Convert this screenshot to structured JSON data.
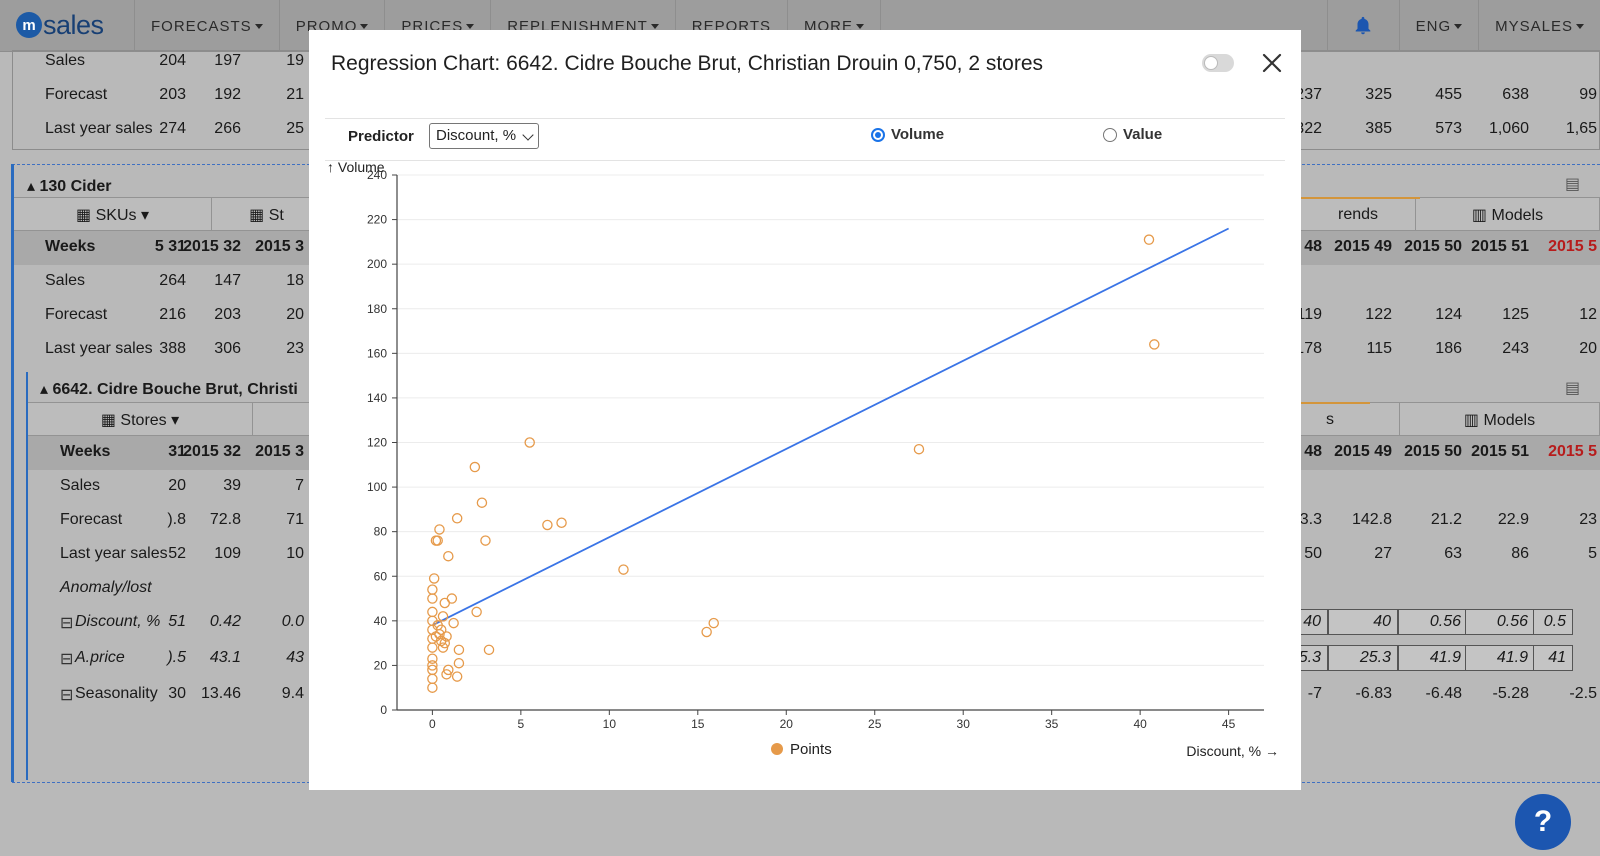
{
  "nav": {
    "logo_mark": "m",
    "logo_text": "sales",
    "items": [
      "FORECASTS",
      "PROMO",
      "PRICES",
      "REPLENISHMENT",
      "REPORTS",
      "MORE"
    ],
    "has_caret": [
      true,
      true,
      true,
      true,
      false,
      true
    ],
    "lang": "ENG",
    "account": "MYSALES"
  },
  "background": {
    "top_rows": [
      {
        "label": "Sales",
        "left": [
          "204",
          "197",
          "19"
        ],
        "right": []
      },
      {
        "label": "Forecast",
        "left": [
          "203",
          "192",
          "21"
        ],
        "right": [
          "237",
          "325",
          "455",
          "638",
          "99"
        ]
      },
      {
        "label": "Last year sales",
        "left": [
          "274",
          "266",
          "25"
        ],
        "right": [
          "322",
          "385",
          "573",
          "1,060",
          "1,65"
        ]
      }
    ],
    "group": {
      "title": "130 Cider",
      "tabs_left": [
        "SKUs",
        "St"
      ],
      "tabs_right": [
        "rends",
        "Models"
      ],
      "weeks_label": "Weeks",
      "weeks_left": [
        "5 31",
        "2015 32",
        "2015 3"
      ],
      "weeks_right": [
        "15 48",
        "2015 49",
        "2015 50",
        "2015 51",
        "2015 5"
      ],
      "rows": [
        {
          "label": "Sales",
          "left": [
            "264",
            "147",
            "18"
          ],
          "right": []
        },
        {
          "label": "Forecast",
          "left": [
            "216",
            "203",
            "20"
          ],
          "right": [
            "119",
            "122",
            "124",
            "125",
            "12"
          ]
        },
        {
          "label": "Last year sales",
          "left": [
            "388",
            "306",
            "23"
          ],
          "right": [
            "178",
            "115",
            "186",
            "243",
            "20"
          ]
        }
      ]
    },
    "sku": {
      "title": "6642. Cidre Bouche Brut, Christi",
      "tabs_left": [
        "Stores"
      ],
      "tabs_right": [
        "s",
        "Models"
      ],
      "weeks_label": "Weeks",
      "weeks_left": [
        "31",
        "2015 32",
        "2015 3"
      ],
      "weeks_right": [
        "15 48",
        "2015 49",
        "2015 50",
        "2015 51",
        "2015 5"
      ],
      "rows": [
        {
          "label": "Sales",
          "left": [
            "20",
            "39",
            "7"
          ],
          "right": []
        },
        {
          "label": "Forecast",
          "left": [
            ").8",
            "72.8",
            "71"
          ],
          "right": [
            "143.3",
            "142.8",
            "21.2",
            "22.9",
            "23"
          ]
        },
        {
          "label": "Last year sales",
          "left": [
            "52",
            "109",
            "10"
          ],
          "right": [
            "50",
            "27",
            "63",
            "86",
            "5"
          ]
        },
        {
          "label": "Anomaly/lost",
          "left": [],
          "right": []
        }
      ],
      "input_rows": [
        {
          "label": "Discount, %",
          "left": [
            "51",
            "0.42",
            "0.0"
          ],
          "right": [
            "40",
            "40",
            "0.56",
            "0.56",
            "0.5"
          ]
        },
        {
          "label": "A.price",
          "left": [
            ").5",
            "43.1",
            "43"
          ],
          "right": [
            "25.3",
            "25.3",
            "41.9",
            "41.9",
            "41"
          ]
        }
      ],
      "season_row": {
        "label": "Seasonality",
        "left": [
          "30",
          "13.46",
          "9.4"
        ],
        "right": [
          "-7",
          "-6.83",
          "-6.48",
          "-5.28",
          "-2.5"
        ]
      }
    }
  },
  "modal": {
    "title": "Regression Chart: 6642. Cidre Bouche Brut, Christian Drouin 0,750, 2 stores",
    "predictor_label": "Predictor",
    "predictor_value": "Discount, %",
    "radio_volume": "Volume",
    "radio_value": "Value",
    "selected": "Volume"
  },
  "chart_data": {
    "type": "scatter",
    "ylabel": "↑ Volume",
    "xlabel": "Discount, % →",
    "xlim": [
      -2,
      47
    ],
    "ylim": [
      0,
      240
    ],
    "x_ticks": [
      0,
      5,
      10,
      15,
      20,
      25,
      30,
      35,
      40,
      45
    ],
    "y_ticks": [
      0,
      20,
      40,
      60,
      80,
      100,
      120,
      140,
      160,
      180,
      200,
      220,
      240
    ],
    "legend": "Points",
    "colors": {
      "points": "#e69a4a",
      "line": "#3a74e6",
      "band": "#c8d8fa"
    },
    "regression": {
      "x": [
        0,
        45
      ],
      "y": [
        38,
        216
      ],
      "band_halfwidth": 12
    },
    "points": [
      [
        0,
        10
      ],
      [
        0,
        14
      ],
      [
        0,
        18
      ],
      [
        0,
        20
      ],
      [
        0,
        23
      ],
      [
        0,
        28
      ],
      [
        0,
        32
      ],
      [
        0,
        36
      ],
      [
        0,
        40
      ],
      [
        0,
        44
      ],
      [
        0,
        50
      ],
      [
        0,
        54
      ],
      [
        0.1,
        59
      ],
      [
        0.2,
        76
      ],
      [
        0.3,
        76
      ],
      [
        0.4,
        81
      ],
      [
        0.2,
        33
      ],
      [
        0.3,
        38
      ],
      [
        0.4,
        34
      ],
      [
        0.5,
        31
      ],
      [
        0.5,
        36
      ],
      [
        0.6,
        28
      ],
      [
        0.6,
        42
      ],
      [
        0.7,
        30
      ],
      [
        0.7,
        48
      ],
      [
        0.8,
        16
      ],
      [
        0.8,
        33
      ],
      [
        0.9,
        69
      ],
      [
        0.9,
        18
      ],
      [
        1.1,
        50
      ],
      [
        1.2,
        39
      ],
      [
        1.4,
        15
      ],
      [
        1.4,
        86
      ],
      [
        1.5,
        21
      ],
      [
        1.5,
        27
      ],
      [
        2.4,
        109
      ],
      [
        2.5,
        44
      ],
      [
        2.8,
        93
      ],
      [
        3.0,
        76
      ],
      [
        3.2,
        27
      ],
      [
        5.5,
        120
      ],
      [
        6.5,
        83
      ],
      [
        7.3,
        84
      ],
      [
        10.8,
        63
      ],
      [
        15.5,
        35
      ],
      [
        15.9,
        39
      ],
      [
        27.5,
        117
      ],
      [
        40.5,
        211
      ],
      [
        40.8,
        164
      ]
    ]
  }
}
